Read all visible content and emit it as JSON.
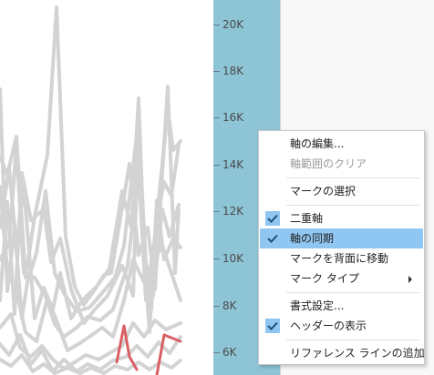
{
  "axis": {
    "ticks": [
      {
        "label": "20K",
        "value": 20000
      },
      {
        "label": "18K",
        "value": 18000
      },
      {
        "label": "16K",
        "value": 16000
      },
      {
        "label": "14K",
        "value": 14000
      },
      {
        "label": "12K",
        "value": 12000
      },
      {
        "label": "10K",
        "value": 10000
      },
      {
        "label": "8K",
        "value": 8000
      },
      {
        "label": "6K",
        "value": 6000
      }
    ]
  },
  "context_menu": {
    "items": [
      {
        "label": "軸の編集...",
        "enabled": true,
        "checked": false,
        "highlighted": false,
        "submenu": false
      },
      {
        "label": "軸範囲のクリア",
        "enabled": false,
        "checked": false,
        "highlighted": false,
        "submenu": false
      },
      {
        "label": "マークの選択",
        "enabled": true,
        "checked": false,
        "highlighted": false,
        "submenu": false
      },
      {
        "label": "二重軸",
        "enabled": true,
        "checked": true,
        "highlighted": false,
        "submenu": false
      },
      {
        "label": "軸の同期",
        "enabled": true,
        "checked": true,
        "highlighted": true,
        "submenu": false
      },
      {
        "label": "マークを背面に移動",
        "enabled": true,
        "checked": false,
        "highlighted": false,
        "submenu": false
      },
      {
        "label": "マーク タイプ",
        "enabled": true,
        "checked": false,
        "highlighted": false,
        "submenu": true
      },
      {
        "label": "書式設定...",
        "enabled": true,
        "checked": false,
        "highlighted": false,
        "submenu": false
      },
      {
        "label": "ヘッダーの表示",
        "enabled": true,
        "checked": true,
        "highlighted": false,
        "submenu": false
      },
      {
        "label": "リファレンス ラインの追加",
        "enabled": true,
        "checked": false,
        "highlighted": false,
        "submenu": false
      }
    ]
  },
  "colors": {
    "axis_band": "#8ec5d6",
    "gray_series": "#d3d3d3",
    "red_series": "#d95f63",
    "highlight": "#90c6f2"
  }
}
